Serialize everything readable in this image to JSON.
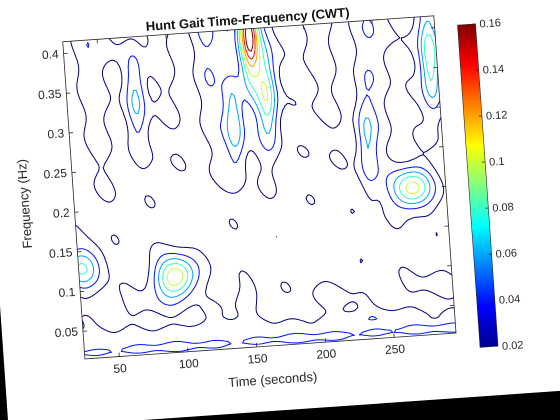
{
  "figure": {
    "background": "#000000",
    "paper_color": "#ffffff",
    "rotation_deg": -4
  },
  "chart_data": {
    "type": "heatmap",
    "style": "contour",
    "title": "Hunt Gait Time-Frequency (CWT)",
    "xlabel": "Time (seconds)",
    "ylabel": "Frequency (Hz)",
    "xlim": [
      25,
      295
    ],
    "ylim": [
      0.015,
      0.415
    ],
    "xticks": [
      50,
      100,
      150,
      200,
      250
    ],
    "yticks": [
      0.05,
      0.1,
      0.15,
      0.2,
      0.25,
      0.3,
      0.35,
      0.4
    ],
    "ytick_labels": [
      "0.05",
      "0.1",
      "0.15",
      "0.2",
      "0.25",
      "0.3",
      "0.35",
      "0.4"
    ],
    "colorbar": {
      "colormap": "jet",
      "range": [
        0.02,
        0.16
      ],
      "ticks": [
        0.02,
        0.04,
        0.06,
        0.08,
        0.1,
        0.12,
        0.14,
        0.16
      ],
      "tick_labels": [
        "0.02",
        "0.04",
        "0.06",
        "0.08",
        "0.1",
        "0.12",
        "0.14",
        "0.16"
      ]
    },
    "contour_levels": [
      0.02,
      0.04,
      0.06,
      0.08,
      0.1,
      0.12,
      0.14,
      0.16
    ],
    "grid": false,
    "features": [
      {
        "t": 95,
        "f": 0.11,
        "peak": 0.12
      },
      {
        "t": 160,
        "f": 0.41,
        "peak": 0.16
      },
      {
        "t": 170,
        "f": 0.33,
        "peak": 0.09
      },
      {
        "t": 270,
        "f": 0.2,
        "peak": 0.11
      },
      {
        "t": 290,
        "f": 0.36,
        "peak": 0.09
      },
      {
        "t": 28,
        "f": 0.13,
        "peak": 0.08
      },
      {
        "t": 145,
        "f": 0.3,
        "peak": 0.08
      },
      {
        "t": 240,
        "f": 0.26,
        "peak": 0.06
      },
      {
        "t": 75,
        "f": 0.34,
        "peak": 0.06
      }
    ]
  }
}
